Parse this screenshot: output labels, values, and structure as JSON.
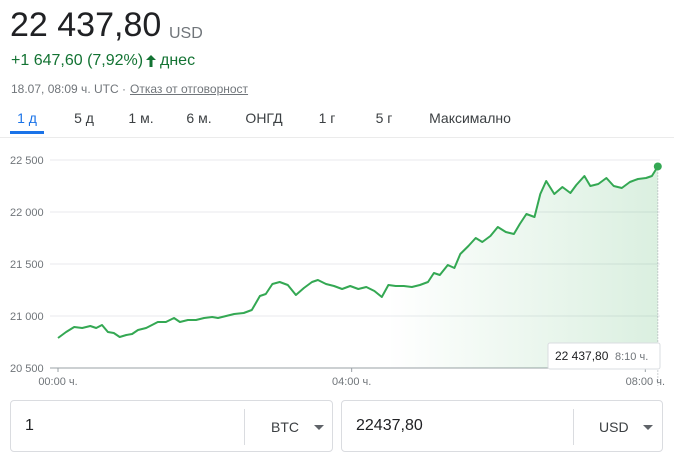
{
  "header": {
    "price": "22 437,80",
    "currency": "USD",
    "change": "+1 647,60 (7,92%)",
    "period": "днес",
    "timestamp": "18.07, 08:09 ч. UTC ·",
    "disclaimer": "Отказ от отговорност"
  },
  "tabs": [
    "1 д",
    "5 д",
    "1 м.",
    "6 м.",
    "ОНГД",
    "1 г",
    "5 г",
    "Максимално"
  ],
  "chart_data": {
    "type": "line",
    "color": "#34a853",
    "grid": true,
    "x": [
      0,
      0.11,
      0.22,
      0.33,
      0.44,
      0.52,
      0.6,
      0.68,
      0.76,
      0.84,
      0.93,
      1.01,
      1.09,
      1.2,
      1.28,
      1.36,
      1.47,
      1.58,
      1.66,
      1.77,
      1.88,
      1.99,
      2.1,
      2.18,
      2.29,
      2.4,
      2.53,
      2.64,
      2.75,
      2.83,
      2.92,
      3.02,
      3.13,
      3.24,
      3.35,
      3.46,
      3.54,
      3.65,
      3.76,
      3.87,
      3.98,
      4.09,
      4.2,
      4.31,
      4.41,
      4.5,
      4.6,
      4.71,
      4.82,
      4.93,
      5.04,
      5.12,
      5.2,
      5.31,
      5.4,
      5.48,
      5.59,
      5.69,
      5.78,
      5.89,
      5.99,
      6.1,
      6.21,
      6.29,
      6.38,
      6.49,
      6.57,
      6.65,
      6.76,
      6.87,
      6.98,
      7.06,
      7.17,
      7.25,
      7.36,
      7.47,
      7.57,
      7.68,
      7.79,
      7.9,
      8.01,
      8.09,
      8.17
    ],
    "values": [
      20788,
      20846,
      20894,
      20885,
      20904,
      20885,
      20913,
      20846,
      20837,
      20798,
      20817,
      20827,
      20865,
      20885,
      20913,
      20942,
      20942,
      20981,
      20942,
      20962,
      20962,
      20981,
      20990,
      20981,
      21000,
      21019,
      21029,
      21058,
      21192,
      21212,
      21308,
      21327,
      21298,
      21202,
      21269,
      21327,
      21346,
      21308,
      21288,
      21260,
      21288,
      21260,
      21279,
      21240,
      21183,
      21298,
      21288,
      21288,
      21279,
      21298,
      21327,
      21413,
      21394,
      21490,
      21462,
      21596,
      21673,
      21750,
      21712,
      21769,
      21856,
      21808,
      21788,
      21885,
      21981,
      21952,
      22173,
      22298,
      22173,
      22240,
      22183,
      22260,
      22346,
      22250,
      22269,
      22327,
      22250,
      22231,
      22288,
      22317,
      22327,
      22346,
      22437.8
    ],
    "xlim": [
      0,
      8.2
    ],
    "ylim": [
      20500,
      22600
    ],
    "xticks": [
      {
        "value": 0,
        "label": "00:00 ч."
      },
      {
        "value": 4,
        "label": "04:00 ч."
      },
      {
        "value": 8,
        "label": "08:00 ч."
      }
    ],
    "yticks": [
      {
        "value": 20500,
        "label": "20 500"
      },
      {
        "value": 21000,
        "label": "21 000"
      },
      {
        "value": 21500,
        "label": "21 500"
      },
      {
        "value": 22000,
        "label": "22 000"
      },
      {
        "value": 22500,
        "label": "22 500"
      }
    ],
    "tooltip": {
      "value_label": "22 437,80",
      "time": "8:10 ч."
    }
  },
  "converter": {
    "amount": "1",
    "from": "BTC",
    "result": "22437,80",
    "to": "USD"
  }
}
